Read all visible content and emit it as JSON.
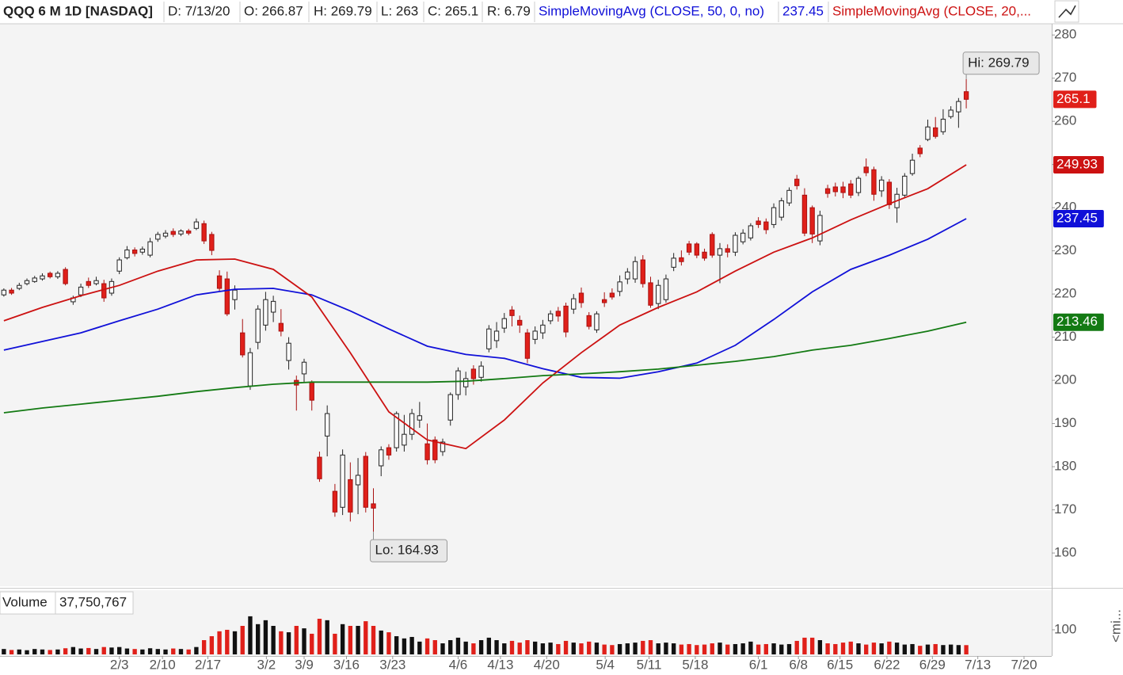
{
  "chart_data": {
    "type": "candlestick",
    "header": [
      "QQQ 6 M 1D [NASDAQ]",
      "D: 7/13/20",
      "O: 266.87",
      "H: 269.79",
      "L: 263",
      "C: 265.1",
      "R: 6.79"
    ],
    "ohlc": [
      [
        219.8,
        221.3,
        219.4,
        220.9
      ],
      [
        220.9,
        221.4,
        219.8,
        220.2
      ],
      [
        221.3,
        222.6,
        220.9,
        222.0
      ],
      [
        222.4,
        223.6,
        222.0,
        223.1
      ],
      [
        222.9,
        224.2,
        222.6,
        223.7
      ],
      [
        223.5,
        224.8,
        223.1,
        224.2
      ],
      [
        224.8,
        225.2,
        223.6,
        224.0
      ],
      [
        224.0,
        225.3,
        223.5,
        224.8
      ],
      [
        225.7,
        226.2,
        222.0,
        222.4
      ],
      [
        218.2,
        219.6,
        217.5,
        219.1
      ],
      [
        219.8,
        222.4,
        219.3,
        221.6
      ],
      [
        222.9,
        223.8,
        221.4,
        222.0
      ],
      [
        222.4,
        224.0,
        222.0,
        223.1
      ],
      [
        222.4,
        223.3,
        218.2,
        219.1
      ],
      [
        220.2,
        223.6,
        219.6,
        222.9
      ],
      [
        225.3,
        228.5,
        224.6,
        227.9
      ],
      [
        228.4,
        231.1,
        228.0,
        230.2
      ],
      [
        230.2,
        230.8,
        228.7,
        229.4
      ],
      [
        229.7,
        231.0,
        229.1,
        230.4
      ],
      [
        229.0,
        233.0,
        228.5,
        232.1
      ],
      [
        232.7,
        234.4,
        232.1,
        233.8
      ],
      [
        233.4,
        234.8,
        232.9,
        234.1
      ],
      [
        234.5,
        235.2,
        233.2,
        233.8
      ],
      [
        233.9,
        235.0,
        233.4,
        234.6
      ],
      [
        234.6,
        235.1,
        233.6,
        234.1
      ],
      [
        235.2,
        237.5,
        234.8,
        236.7
      ],
      [
        236.3,
        237.0,
        231.6,
        232.3
      ],
      [
        233.8,
        234.4,
        229.0,
        230.1
      ],
      [
        224.2,
        225.5,
        220.6,
        221.3
      ],
      [
        223.5,
        225.2,
        214.9,
        215.4
      ],
      [
        218.7,
        222.0,
        216.4,
        220.9
      ],
      [
        211.0,
        214.2,
        205.3,
        205.9
      ],
      [
        198.7,
        207.5,
        197.8,
        206.4
      ],
      [
        208.8,
        217.4,
        207.2,
        216.5
      ],
      [
        212.8,
        220.5,
        211.5,
        218.7
      ],
      [
        215.8,
        219.6,
        213.5,
        218.3
      ],
      [
        213.2,
        216.5,
        210.2,
        211.4
      ],
      [
        204.6,
        210.0,
        202.5,
        208.6
      ],
      [
        200.0,
        201.1,
        193.0,
        198.9
      ],
      [
        201.5,
        205.0,
        199.5,
        204.2
      ],
      [
        199.6,
        200.0,
        193.0,
        195.4
      ],
      [
        182.2,
        183.5,
        176.5,
        177.2
      ],
      [
        187.1,
        194.2,
        182.4,
        192.3
      ],
      [
        174.3,
        176.0,
        168.4,
        169.5
      ],
      [
        170.6,
        184.0,
        168.8,
        182.7
      ],
      [
        177.0,
        181.0,
        167.3,
        169.5
      ],
      [
        175.8,
        182.0,
        169.0,
        178.0
      ],
      [
        182.4,
        183.4,
        169.4,
        170.6
      ],
      [
        171.4,
        175.0,
        164.93,
        170.4
      ],
      [
        180.2,
        184.7,
        177.8,
        183.9
      ],
      [
        184.4,
        185.2,
        181.6,
        182.7
      ],
      [
        184.4,
        192.8,
        183.5,
        192.3
      ],
      [
        185.0,
        192.0,
        183.5,
        187.5
      ],
      [
        187.5,
        193.4,
        186.2,
        192.3
      ],
      [
        190.8,
        195.0,
        189.0,
        191.8
      ],
      [
        185.3,
        190.0,
        180.5,
        181.6
      ],
      [
        186.2,
        187.0,
        180.8,
        181.6
      ],
      [
        183.5,
        186.5,
        182.5,
        185.7
      ],
      [
        190.8,
        197.2,
        189.5,
        196.7
      ],
      [
        196.7,
        203.0,
        195.5,
        202.2
      ],
      [
        198.5,
        202.0,
        196.5,
        200.4
      ],
      [
        202.6,
        203.5,
        199.0,
        200.4
      ],
      [
        200.7,
        204.4,
        199.7,
        203.3
      ],
      [
        207.3,
        212.8,
        206.5,
        211.9
      ],
      [
        209.2,
        213.5,
        207.5,
        211.4
      ],
      [
        212.1,
        215.6,
        211.0,
        214.3
      ],
      [
        216.3,
        217.2,
        212.5,
        215.0
      ],
      [
        213.9,
        215.0,
        211.0,
        212.8
      ],
      [
        211.0,
        211.9,
        204.0,
        205.1
      ],
      [
        209.5,
        212.5,
        208.4,
        211.4
      ],
      [
        211.0,
        214.0,
        209.6,
        212.8
      ],
      [
        213.8,
        216.2,
        213.0,
        215.4
      ],
      [
        216.0,
        217.0,
        213.6,
        214.9
      ],
      [
        217.2,
        218.0,
        210.0,
        211.2
      ],
      [
        216.5,
        220.0,
        215.4,
        218.9
      ],
      [
        220.2,
        221.5,
        216.8,
        218.0
      ],
      [
        215.0,
        215.8,
        211.8,
        212.5
      ],
      [
        211.7,
        216.0,
        211.0,
        215.4
      ],
      [
        218.7,
        220.4,
        217.0,
        218.0
      ],
      [
        220.2,
        221.3,
        218.7,
        219.3
      ],
      [
        220.6,
        224.3,
        219.5,
        222.8
      ],
      [
        223.5,
        226.0,
        222.3,
        225.1
      ],
      [
        223.5,
        228.7,
        222.6,
        227.5
      ],
      [
        227.9,
        229.0,
        221.5,
        222.4
      ],
      [
        222.6,
        224.0,
        216.8,
        217.4
      ],
      [
        217.8,
        223.3,
        216.5,
        222.0
      ],
      [
        218.7,
        224.5,
        218.0,
        223.5
      ],
      [
        226.2,
        229.5,
        225.3,
        228.3
      ],
      [
        228.4,
        230.1,
        226.6,
        227.5
      ],
      [
        231.6,
        232.3,
        229.0,
        229.7
      ],
      [
        231.6,
        232.0,
        228.3,
        229.0
      ],
      [
        229.7,
        230.5,
        227.7,
        228.3
      ],
      [
        233.8,
        234.3,
        228.4,
        229.0
      ],
      [
        229.0,
        231.8,
        222.5,
        230.5
      ],
      [
        230.5,
        231.5,
        228.5,
        229.7
      ],
      [
        229.7,
        234.3,
        228.8,
        233.6
      ],
      [
        232.1,
        235.0,
        231.5,
        234.1
      ],
      [
        233.0,
        236.4,
        232.4,
        235.8
      ],
      [
        236.9,
        237.8,
        235.3,
        236.1
      ],
      [
        236.7,
        237.5,
        233.9,
        234.9
      ],
      [
        236.1,
        241.0,
        235.3,
        240.0
      ],
      [
        237.8,
        242.3,
        237.0,
        241.6
      ],
      [
        241.1,
        244.7,
        240.4,
        244.0
      ],
      [
        246.6,
        247.6,
        244.2,
        245.1
      ],
      [
        242.9,
        244.5,
        233.4,
        234.1
      ],
      [
        240.0,
        240.5,
        231.8,
        233.9
      ],
      [
        232.3,
        239.3,
        231.3,
        238.2
      ],
      [
        244.4,
        245.3,
        242.3,
        243.3
      ],
      [
        244.8,
        245.8,
        242.6,
        243.7
      ],
      [
        244.8,
        246.0,
        242.2,
        243.5
      ],
      [
        245.5,
        246.4,
        242.2,
        242.9
      ],
      [
        243.5,
        247.3,
        242.7,
        246.8
      ],
      [
        249.4,
        251.4,
        247.3,
        248.1
      ],
      [
        248.8,
        249.5,
        241.6,
        243.1
      ],
      [
        243.9,
        247.3,
        242.5,
        246.4
      ],
      [
        245.9,
        246.6,
        239.7,
        240.7
      ],
      [
        240.0,
        244.6,
        236.5,
        243.1
      ],
      [
        242.9,
        248.0,
        242.4,
        247.3
      ],
      [
        247.9,
        252.5,
        247.4,
        251.0
      ],
      [
        253.8,
        254.5,
        251.7,
        252.5
      ],
      [
        255.8,
        260.4,
        255.4,
        258.7
      ],
      [
        258.5,
        261.0,
        256.0,
        256.5
      ],
      [
        257.6,
        262.8,
        256.9,
        260.5
      ],
      [
        261.1,
        263.5,
        260.6,
        262.6
      ],
      [
        262.2,
        265.4,
        258.5,
        264.6
      ],
      [
        266.87,
        269.79,
        263,
        265.1
      ]
    ],
    "up_color": "#ffffff",
    "down_color": "#e0201a",
    "series": [
      {
        "name": "SimpleMovingAvg (CLOSE, 50, 0, no)",
        "color": "#1010d8",
        "x": [
          0,
          5,
          10,
          15,
          20,
          25,
          30,
          35,
          40,
          45,
          50,
          55,
          60,
          65,
          70,
          75,
          80,
          85,
          90,
          95,
          100,
          105,
          110,
          115,
          120,
          125
        ],
        "values": [
          207.0,
          209.0,
          211.0,
          213.8,
          216.5,
          219.8,
          221.1,
          221.3,
          219.8,
          216.1,
          211.9,
          207.9,
          206.0,
          205.1,
          202.7,
          200.7,
          200.5,
          202.0,
          204.0,
          208.1,
          214.1,
          220.5,
          225.7,
          229.0,
          232.7,
          237.45
        ]
      },
      {
        "name": "SimpleMovingAvg (CLOSE, 20,...",
        "color": "#cc1111",
        "x": [
          0,
          5,
          10,
          15,
          20,
          25,
          30,
          35,
          40,
          45,
          50,
          55,
          60,
          65,
          70,
          75,
          80,
          85,
          90,
          95,
          100,
          105,
          110,
          115,
          120,
          125
        ],
        "values": [
          213.8,
          216.9,
          219.6,
          222.0,
          225.3,
          227.9,
          228.1,
          225.7,
          219.3,
          206.4,
          192.7,
          186.2,
          184.2,
          190.8,
          199.4,
          206.4,
          212.8,
          216.9,
          220.5,
          225.3,
          229.7,
          233.0,
          237.2,
          240.9,
          244.4,
          249.93
        ]
      },
      {
        "color": "#137a13",
        "x": [
          0,
          5,
          10,
          15,
          20,
          25,
          30,
          35,
          40,
          45,
          50,
          55,
          60,
          65,
          70,
          75,
          80,
          85,
          90,
          95,
          100,
          105,
          110,
          115,
          120,
          125
        ],
        "values": [
          192.5,
          193.6,
          194.5,
          195.4,
          196.3,
          197.4,
          198.3,
          199.1,
          199.6,
          199.6,
          199.6,
          199.6,
          199.8,
          200.4,
          201.1,
          201.5,
          202.0,
          202.6,
          203.5,
          204.4,
          205.5,
          207.0,
          208.1,
          209.7,
          211.4,
          213.46
        ]
      }
    ],
    "xlim": [
      -0.5,
      136.1
    ],
    "ylim": [
      152.3,
      282.6
    ],
    "yticks": [
      160,
      170,
      180,
      190,
      200,
      210,
      220,
      230,
      240,
      250,
      260,
      270,
      280
    ],
    "xticks": [
      {
        "value": 15.0,
        "label": "2/3"
      },
      {
        "value": 20.6,
        "label": "2/10"
      },
      {
        "value": 26.5,
        "label": "2/17"
      },
      {
        "value": 34.1,
        "label": "3/2"
      },
      {
        "value": 39.0,
        "label": "3/9"
      },
      {
        "value": 44.5,
        "label": "3/16"
      },
      {
        "value": 50.5,
        "label": "3/23"
      },
      {
        "value": 59.0,
        "label": "4/6"
      },
      {
        "value": 64.5,
        "label": "4/13"
      },
      {
        "value": 70.5,
        "label": "4/20"
      },
      {
        "value": 78.1,
        "label": "5/4"
      },
      {
        "value": 83.8,
        "label": "5/11"
      },
      {
        "value": 89.8,
        "label": "5/18"
      },
      {
        "value": 98.0,
        "label": "6/1"
      },
      {
        "value": 103.2,
        "label": "6/8"
      },
      {
        "value": 108.6,
        "label": "6/15"
      },
      {
        "value": 114.7,
        "label": "6/22"
      },
      {
        "value": 120.6,
        "label": "6/29"
      },
      {
        "value": 126.5,
        "label": "7/13"
      },
      {
        "value": 132.5,
        "label": "7/20"
      }
    ],
    "annotations": [
      "Hi: 269.79",
      "Lo: 164.93"
    ],
    "volume": {
      "label": "Volume",
      "header": "37,750,767",
      "ylim": [
        0,
        261
      ],
      "yticks": [
        100
      ],
      "values": [
        22,
        18,
        20,
        17,
        22,
        20,
        18,
        20,
        25,
        30,
        24,
        26,
        22,
        30,
        28,
        30,
        24,
        22,
        20,
        25,
        22,
        20,
        24,
        22,
        20,
        30,
        58,
        74,
        94,
        100,
        94,
        116,
        155,
        123,
        139,
        116,
        94,
        90,
        116,
        106,
        84,
        145,
        139,
        84,
        123,
        116,
        116,
        135,
        116,
        97,
        90,
        74,
        65,
        71,
        52,
        65,
        58,
        45,
        58,
        68,
        52,
        45,
        58,
        68,
        58,
        45,
        55,
        48,
        58,
        52,
        45,
        48,
        42,
        55,
        48,
        45,
        52,
        48,
        40,
        38,
        42,
        45,
        48,
        55,
        58,
        45,
        48,
        45,
        40,
        42,
        38,
        40,
        45,
        48,
        40,
        42,
        45,
        52,
        40,
        42,
        45,
        40,
        42,
        55,
        68,
        68,
        58,
        45,
        42,
        48,
        52,
        45,
        40,
        48,
        45,
        52,
        48,
        40,
        42,
        35,
        40,
        42,
        38,
        40,
        38,
        37.750767
      ]
    },
    "side_label": "<mi..."
  }
}
